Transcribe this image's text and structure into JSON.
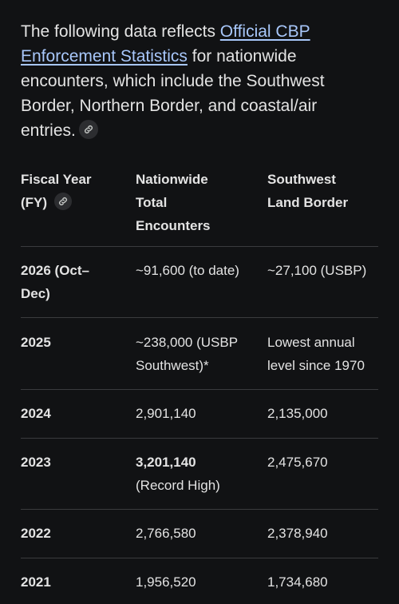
{
  "intro": {
    "text_before": "The following data reflects ",
    "link_text": "Official CBP Enforcement Statistics",
    "text_after": " for nationwide encounters, which include the Southwest Border, Northern Border, and coastal/air entries."
  },
  "table": {
    "headers": [
      {
        "line1": "Fiscal Year",
        "line2": "(FY)"
      },
      {
        "line1": "Nationwide",
        "line2": "Total",
        "line3": "Encounters"
      },
      {
        "line1": "Southwest",
        "line2": "Land Border"
      }
    ],
    "rows": [
      {
        "year_line1": "2026 (Oct–",
        "year_line2": "Dec)",
        "nationwide": "~91,600 (to date)",
        "southwest": "~27,100 (USBP)"
      },
      {
        "year_line1": "2025",
        "nationwide_line1": "~238,000 (USBP",
        "nationwide_line2": "Southwest)*",
        "southwest_line1": "Lowest annual",
        "southwest_line2": "level since 1970"
      },
      {
        "year_line1": "2024",
        "nationwide": "2,901,140",
        "southwest": "2,135,000"
      },
      {
        "year_line1": "2023",
        "nationwide_line1": "3,201,140",
        "nationwide_line2": "(Record High)",
        "southwest": "2,475,670"
      },
      {
        "year_line1": "2022",
        "nationwide": "2,766,580",
        "southwest": "2,378,940"
      },
      {
        "year_line1": "2021",
        "nationwide": "1,956,520",
        "southwest": "1,734,680"
      }
    ]
  },
  "icons": {
    "link": "link-icon"
  },
  "colors": {
    "background": "#111214",
    "text": "#e3e3e3",
    "link": "#a8c7fa",
    "divider": "#3a3b3e"
  }
}
